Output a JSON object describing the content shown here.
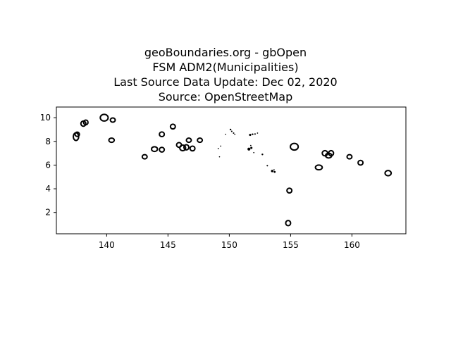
{
  "title_lines": [
    "geoBoundaries.org - gbOpen",
    "FSM ADM2(Municipalities)",
    "Last Source Data Update: Dec 02, 2020",
    "Source: OpenStreetMap"
  ],
  "chart_data": {
    "type": "map",
    "xlim": [
      135.9,
      164.4
    ],
    "ylim": [
      0.2,
      10.9
    ],
    "x_ticks": [
      140,
      145,
      150,
      155,
      160
    ],
    "y_ticks": [
      2,
      4,
      6,
      8,
      10
    ],
    "grid": false,
    "outline_color": "#000000",
    "outline_polygons": [
      {
        "cx": 137.5,
        "cy": 8.4,
        "rx": 0.22,
        "ry": 0.32
      },
      {
        "cx": 137.6,
        "cy": 8.6,
        "rx": 0.18,
        "ry": 0.18
      },
      {
        "cx": 138.1,
        "cy": 9.5,
        "rx": 0.2,
        "ry": 0.22
      },
      {
        "cx": 138.3,
        "cy": 9.6,
        "rx": 0.18,
        "ry": 0.2
      },
      {
        "cx": 139.8,
        "cy": 10.0,
        "rx": 0.32,
        "ry": 0.28
      },
      {
        "cx": 140.5,
        "cy": 9.8,
        "rx": 0.2,
        "ry": 0.18
      },
      {
        "cx": 140.4,
        "cy": 8.1,
        "rx": 0.22,
        "ry": 0.18
      },
      {
        "cx": 143.1,
        "cy": 6.7,
        "rx": 0.2,
        "ry": 0.18
      },
      {
        "cx": 143.9,
        "cy": 7.35,
        "rx": 0.24,
        "ry": 0.2
      },
      {
        "cx": 144.5,
        "cy": 7.3,
        "rx": 0.2,
        "ry": 0.2
      },
      {
        "cx": 144.5,
        "cy": 8.6,
        "rx": 0.2,
        "ry": 0.2
      },
      {
        "cx": 145.4,
        "cy": 9.25,
        "rx": 0.2,
        "ry": 0.2
      },
      {
        "cx": 145.9,
        "cy": 7.7,
        "rx": 0.2,
        "ry": 0.2
      },
      {
        "cx": 146.2,
        "cy": 7.45,
        "rx": 0.24,
        "ry": 0.24
      },
      {
        "cx": 146.5,
        "cy": 7.5,
        "rx": 0.2,
        "ry": 0.22
      },
      {
        "cx": 146.7,
        "cy": 8.1,
        "rx": 0.2,
        "ry": 0.18
      },
      {
        "cx": 147.0,
        "cy": 7.4,
        "rx": 0.2,
        "ry": 0.2
      },
      {
        "cx": 147.6,
        "cy": 8.1,
        "rx": 0.2,
        "ry": 0.18
      },
      {
        "cx": 154.9,
        "cy": 3.85,
        "rx": 0.2,
        "ry": 0.2
      },
      {
        "cx": 154.8,
        "cy": 1.1,
        "rx": 0.2,
        "ry": 0.22
      },
      {
        "cx": 155.3,
        "cy": 7.55,
        "rx": 0.32,
        "ry": 0.28
      },
      {
        "cx": 157.3,
        "cy": 5.8,
        "rx": 0.28,
        "ry": 0.2
      },
      {
        "cx": 157.8,
        "cy": 7.0,
        "rx": 0.22,
        "ry": 0.22
      },
      {
        "cx": 158.1,
        "cy": 6.8,
        "rx": 0.25,
        "ry": 0.2
      },
      {
        "cx": 158.3,
        "cy": 7.0,
        "rx": 0.2,
        "ry": 0.22
      },
      {
        "cx": 159.8,
        "cy": 6.7,
        "rx": 0.2,
        "ry": 0.18
      },
      {
        "cx": 160.7,
        "cy": 6.2,
        "rx": 0.2,
        "ry": 0.2
      },
      {
        "cx": 162.95,
        "cy": 5.32,
        "rx": 0.25,
        "ry": 0.22
      }
    ],
    "filled_islets": [
      {
        "cx": 149.1,
        "cy": 7.4,
        "r": 0.05
      },
      {
        "cx": 149.3,
        "cy": 7.6,
        "r": 0.05
      },
      {
        "cx": 149.2,
        "cy": 6.7,
        "r": 0.04
      },
      {
        "cx": 149.7,
        "cy": 8.6,
        "r": 0.04
      },
      {
        "cx": 150.1,
        "cy": 9.0,
        "r": 0.07
      },
      {
        "cx": 150.2,
        "cy": 8.85,
        "r": 0.06
      },
      {
        "cx": 150.35,
        "cy": 8.7,
        "r": 0.06
      },
      {
        "cx": 150.45,
        "cy": 8.6,
        "r": 0.05
      },
      {
        "cx": 151.7,
        "cy": 8.55,
        "r": 0.09
      },
      {
        "cx": 151.9,
        "cy": 8.6,
        "r": 0.07
      },
      {
        "cx": 152.1,
        "cy": 8.62,
        "r": 0.06
      },
      {
        "cx": 152.3,
        "cy": 8.7,
        "r": 0.05
      },
      {
        "cx": 151.6,
        "cy": 7.35,
        "r": 0.12
      },
      {
        "cx": 151.8,
        "cy": 7.45,
        "r": 0.09
      },
      {
        "cx": 151.75,
        "cy": 7.65,
        "r": 0.05
      },
      {
        "cx": 152.0,
        "cy": 7.05,
        "r": 0.05
      },
      {
        "cx": 152.7,
        "cy": 6.9,
        "r": 0.07
      },
      {
        "cx": 153.1,
        "cy": 5.95,
        "r": 0.06
      },
      {
        "cx": 153.5,
        "cy": 5.5,
        "r": 0.1
      },
      {
        "cx": 153.7,
        "cy": 5.42,
        "r": 0.08
      },
      {
        "cx": 153.65,
        "cy": 5.6,
        "r": 0.05
      }
    ]
  }
}
